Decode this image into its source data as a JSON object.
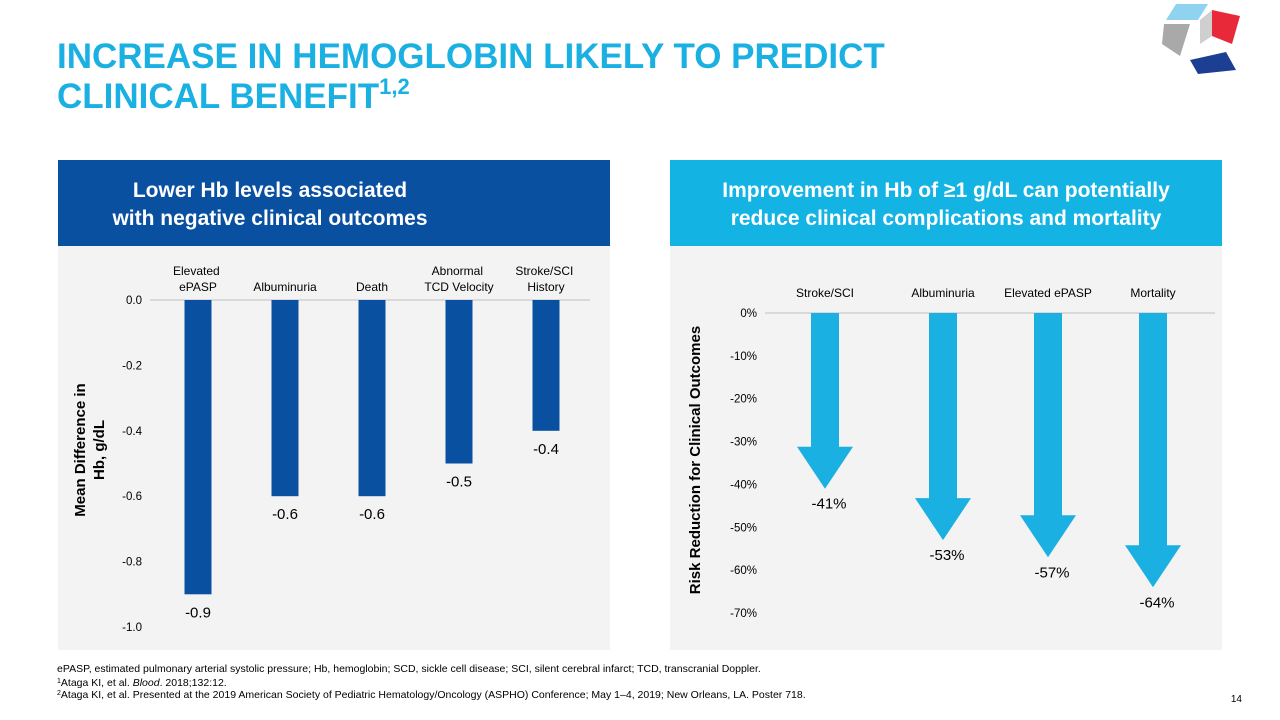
{
  "title_lines": [
    "INCREASE IN HEMOGLOBIN LIKELY TO PREDICT",
    "CLINICAL BENEFIT"
  ],
  "title_superscript": "1,2",
  "page_number": "14",
  "footnotes": {
    "abbreviations": "ePASP, estimated pulmonary arterial systolic pressure; Hb, hemoglobin; SCD, sickle cell disease; SCI, silent cerebral infarct; TCD, transcranial Doppler.",
    "references": [
      {
        "marker": "1",
        "parts": [
          "Ataga KI, et al. ",
          "Blood",
          ". 2018;132:12."
        ]
      },
      {
        "marker": "2",
        "parts": [
          "Ataga KI, et al. Presented at the 2019 American Society of Pediatric Hematology/Oncology (ASPHO) Conference; May 1–4, 2019; New Orleans, LA. Poster 718."
        ]
      }
    ]
  },
  "chart_data": [
    {
      "type": "bar",
      "header_lines": [
        "Lower Hb levels associated",
        "with negative clinical outcomes"
      ],
      "header_color": "#0a50a1",
      "y_label_lines": [
        "Mean Difference in",
        "Hb, g/dL"
      ],
      "categories": [
        "Elevated ePASP",
        "Albuminuria",
        "Death",
        "Abnormal TCD Velocity",
        "Stroke/SCI History"
      ],
      "values": [
        -0.9,
        -0.6,
        -0.6,
        -0.5,
        -0.4
      ],
      "color": "#0a50a1",
      "ylim": [
        -1.0,
        0
      ],
      "yticks": [
        {
          "value": 0,
          "label": "0.0"
        },
        -0.2,
        -0.4,
        -0.6,
        -0.8,
        {
          "value": -1.0,
          "label": "-1.0"
        }
      ]
    },
    {
      "type": "arrow",
      "header_lines": [
        "Improvement in Hb of ≥1 g/dL can potentially",
        "reduce clinical complications and mortality"
      ],
      "header_color": "#13b4e4",
      "y_label_lines": [
        "Risk Reduction for Clinical Outcomes"
      ],
      "categories": [
        "Stroke/SCI",
        "Albuminuria",
        "Elevated ePASP",
        "Mortality"
      ],
      "values": [
        -41,
        -53,
        -57,
        -64
      ],
      "value_labels": [
        "-41%",
        "-53%",
        "-57%",
        "-64%"
      ],
      "color": "#1ab0e2",
      "ylim": [
        -70,
        0
      ],
      "yticks": [
        {
          "value": 0,
          "label": "0%"
        },
        {
          "value": -10,
          "label": "-10%"
        },
        {
          "value": -20,
          "label": "-20%"
        },
        {
          "value": -30,
          "label": "-30%"
        },
        {
          "value": -40,
          "label": "-40%"
        },
        {
          "value": -50,
          "label": "-50%"
        },
        {
          "value": -60,
          "label": "-60%"
        },
        {
          "value": -70,
          "label": "-70%"
        }
      ],
      "grid": true
    }
  ]
}
